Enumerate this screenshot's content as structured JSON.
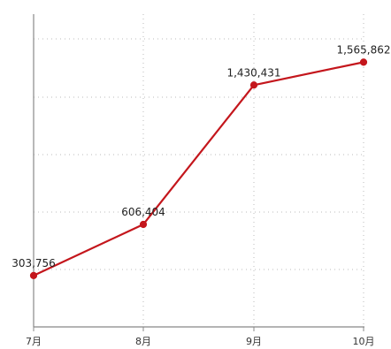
{
  "chart_data": {
    "type": "line",
    "categories": [
      "7月",
      "8月",
      "9月",
      "10月"
    ],
    "series": [
      {
        "values": [
          303756,
          606404,
          1430431,
          1565862
        ],
        "labels": [
          "303,756",
          "606,404",
          "1,430,431",
          "1,565,862"
        ]
      }
    ],
    "ylim": [
      0,
      1850000
    ],
    "grid": true,
    "legend": "none",
    "colors": {
      "line": "#c4161c",
      "axis": "#888888",
      "grid": "#bbbbbb"
    }
  }
}
